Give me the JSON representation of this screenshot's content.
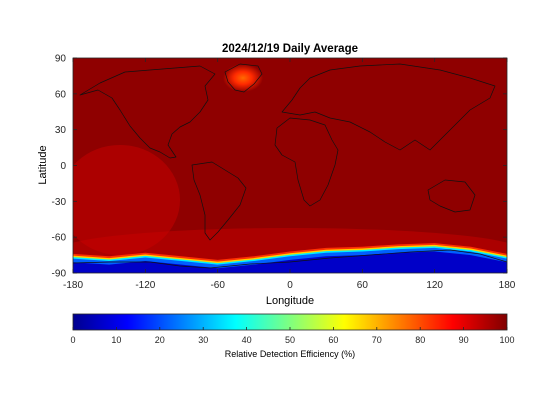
{
  "chart_data": {
    "type": "heatmap",
    "title": "2024/12/19 Daily Average",
    "xlabel": "Longitude",
    "ylabel": "Latitude",
    "xlim": [
      -180,
      180
    ],
    "ylim": [
      -90,
      90
    ],
    "xticks": [
      -180,
      -120,
      -60,
      0,
      60,
      120,
      180
    ],
    "yticks": [
      90,
      60,
      30,
      0,
      -30,
      -60,
      -90
    ],
    "colorbar": {
      "label": "Relative Detection Efficiency (%)",
      "range": [
        0,
        100
      ],
      "ticks": [
        0,
        10,
        20,
        30,
        40,
        50,
        60,
        70,
        80,
        90,
        100
      ],
      "colormap": "jet"
    },
    "field_summary": {
      "background_value": 97,
      "greenland_max": 88,
      "greenland_center": [
        -40,
        73
      ],
      "antarctic_min": 5,
      "antarctic_edge": [
        {
          "lon": -180,
          "lat": -78
        },
        {
          "lon": -150,
          "lat": -80
        },
        {
          "lon": -120,
          "lat": -77
        },
        {
          "lon": -90,
          "lat": -80
        },
        {
          "lon": -60,
          "lat": -83
        },
        {
          "lon": -30,
          "lat": -80
        },
        {
          "lon": 0,
          "lat": -76
        },
        {
          "lon": 30,
          "lat": -73
        },
        {
          "lon": 60,
          "lat": -72
        },
        {
          "lon": 90,
          "lat": -70
        },
        {
          "lon": 120,
          "lat": -69
        },
        {
          "lon": 150,
          "lat": -72
        },
        {
          "lon": 180,
          "lat": -78
        }
      ]
    }
  }
}
